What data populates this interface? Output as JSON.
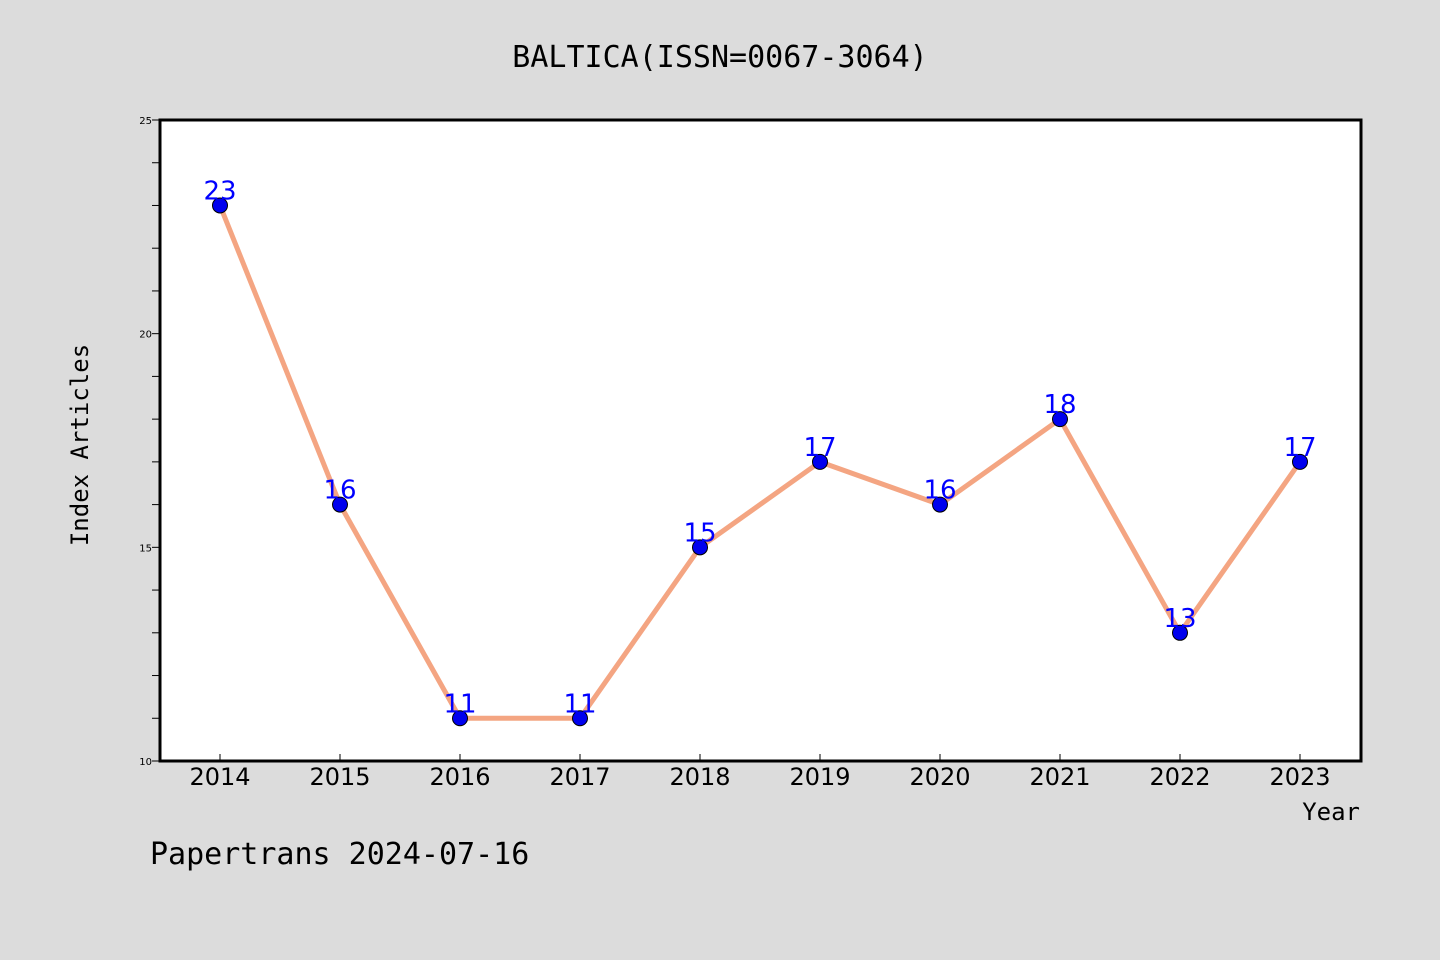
{
  "chart_data": {
    "type": "line",
    "title": "BALTICA(ISSN=0067-3064)",
    "xlabel": "Year",
    "ylabel": "Index Articles",
    "categories": [
      "2014",
      "2015",
      "2016",
      "2017",
      "2018",
      "2019",
      "2020",
      "2021",
      "2022",
      "2023"
    ],
    "series": [
      {
        "values": [
          23,
          16,
          11,
          11,
          15,
          17,
          16,
          18,
          13,
          17
        ]
      }
    ],
    "ylim": [
      10,
      25
    ],
    "yticks": [
      "10",
      "15",
      "20",
      "25"
    ],
    "grid": false,
    "line_color": "#f4a582",
    "marker_color": "#0000ee",
    "label_color": "#0000ff"
  },
  "footer": {
    "text": "Papertrans 2024-07-16"
  }
}
